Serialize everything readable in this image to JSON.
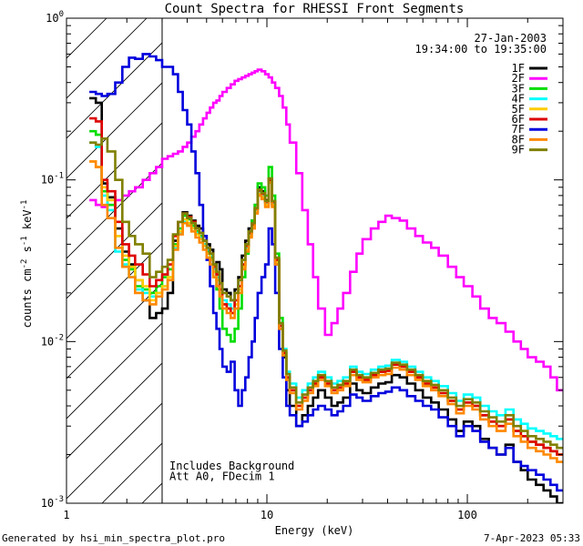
{
  "chart_data": {
    "type": "line",
    "title": "Count Spectra for RHESSI Front Segments",
    "xlabel": "Energy (keV)",
    "ylabel_parts": [
      "counts cm",
      "-2",
      " s",
      "-1",
      " keV",
      "-1"
    ],
    "xscale": "log",
    "yscale": "log",
    "xlim": [
      1,
      300
    ],
    "ylim": [
      0.001,
      1
    ],
    "x_ticks": [
      {
        "value": 1,
        "label": "1"
      },
      {
        "value": 10,
        "label": "10"
      },
      {
        "value": 100,
        "label": "100"
      }
    ],
    "y_ticks": [
      {
        "value": 0.001,
        "base": "10",
        "exp": "-3"
      },
      {
        "value": 0.01,
        "base": "10",
        "exp": "-2"
      },
      {
        "value": 0.1,
        "base": "10",
        "exp": "-1"
      },
      {
        "value": 1,
        "base": "10",
        "exp": "0"
      }
    ],
    "hatched_region_kev": [
      1,
      3
    ],
    "date": "27-Jan-2003",
    "time_range": "19:34:00 to 19:35:00",
    "annotations": [
      "Includes Background",
      "Att A0, FDecim 1"
    ],
    "footer_left": "Generated by hsi_min_spectra_plot.pro",
    "footer_right": "7-Apr-2023 05:33",
    "energy_edges_kev": [
      1.3,
      1.4,
      1.5,
      1.6,
      1.75,
      1.9,
      2.05,
      2.2,
      2.4,
      2.6,
      2.8,
      3.0,
      3.2,
      3.4,
      3.6,
      3.8,
      4.0,
      4.2,
      4.4,
      4.6,
      4.8,
      5.0,
      5.2,
      5.4,
      5.6,
      5.8,
      6.0,
      6.3,
      6.6,
      6.9,
      7.2,
      7.5,
      7.8,
      8.1,
      8.4,
      8.7,
      9.0,
      9.4,
      9.8,
      10.2,
      10.6,
      11.0,
      11.5,
      12.0,
      12.5,
      13.0,
      14.0,
      15.0,
      16.0,
      17.0,
      18.0,
      19.5,
      21.0,
      22.5,
      24.0,
      26.0,
      28.0,
      30.0,
      33.0,
      36.0,
      39.0,
      42.0,
      46.0,
      50.0,
      55.0,
      60.0,
      66.0,
      72.0,
      80.0,
      88.0,
      96.0,
      106.0,
      116.0,
      128.0,
      140.0,
      155.0,
      170.0,
      185.0,
      200.0,
      220.0,
      240.0,
      260.0,
      280.0,
      300.0
    ],
    "series": [
      {
        "name": "1F",
        "color": "#000000",
        "values": [
          0.32,
          0.3,
          0.095,
          0.078,
          0.05,
          0.036,
          0.03,
          0.024,
          0.018,
          0.014,
          0.015,
          0.016,
          0.02,
          0.042,
          0.055,
          0.063,
          0.06,
          0.056,
          0.052,
          0.05,
          0.045,
          0.04,
          0.037,
          0.03,
          0.031,
          0.028,
          0.021,
          0.02,
          0.018,
          0.021,
          0.025,
          0.034,
          0.042,
          0.05,
          0.056,
          0.07,
          0.09,
          0.085,
          0.075,
          0.1,
          0.07,
          0.03,
          0.012,
          0.008,
          0.005,
          0.004,
          0.003,
          0.0035,
          0.004,
          0.0045,
          0.005,
          0.0045,
          0.004,
          0.0042,
          0.0045,
          0.0055,
          0.005,
          0.0048,
          0.0052,
          0.0055,
          0.0056,
          0.0062,
          0.006,
          0.0055,
          0.005,
          0.0045,
          0.0042,
          0.0038,
          0.0033,
          0.0028,
          0.0032,
          0.003,
          0.0025,
          0.0022,
          0.002,
          0.0023,
          0.0018,
          0.0016,
          0.0014,
          0.0013,
          0.0012,
          0.0011,
          0.001
        ]
      },
      {
        "name": "2F",
        "color": "#ff00ff",
        "values": [
          0.075,
          0.07,
          0.068,
          0.07,
          0.075,
          0.08,
          0.085,
          0.09,
          0.1,
          0.11,
          0.12,
          0.135,
          0.14,
          0.145,
          0.15,
          0.16,
          0.17,
          0.185,
          0.2,
          0.22,
          0.24,
          0.26,
          0.28,
          0.3,
          0.31,
          0.33,
          0.35,
          0.37,
          0.39,
          0.41,
          0.42,
          0.43,
          0.44,
          0.45,
          0.46,
          0.47,
          0.48,
          0.47,
          0.45,
          0.43,
          0.4,
          0.37,
          0.33,
          0.28,
          0.22,
          0.17,
          0.11,
          0.065,
          0.04,
          0.025,
          0.016,
          0.011,
          0.013,
          0.016,
          0.02,
          0.027,
          0.035,
          0.043,
          0.05,
          0.055,
          0.06,
          0.058,
          0.056,
          0.05,
          0.045,
          0.041,
          0.038,
          0.034,
          0.029,
          0.025,
          0.022,
          0.019,
          0.016,
          0.014,
          0.013,
          0.0115,
          0.01,
          0.009,
          0.008,
          0.0075,
          0.007,
          0.006,
          0.005
        ]
      },
      {
        "name": "3F",
        "color": "#00dd00",
        "values": [
          0.2,
          0.19,
          0.085,
          0.07,
          0.045,
          0.032,
          0.028,
          0.022,
          0.021,
          0.02,
          0.022,
          0.025,
          0.028,
          0.04,
          0.05,
          0.06,
          0.057,
          0.052,
          0.048,
          0.045,
          0.04,
          0.036,
          0.033,
          0.025,
          0.021,
          0.016,
          0.012,
          0.011,
          0.01,
          0.012,
          0.016,
          0.025,
          0.035,
          0.048,
          0.056,
          0.07,
          0.095,
          0.09,
          0.08,
          0.12,
          0.08,
          0.035,
          0.014,
          0.009,
          0.0065,
          0.005,
          0.004,
          0.0045,
          0.005,
          0.0055,
          0.006,
          0.0055,
          0.005,
          0.0052,
          0.0055,
          0.0065,
          0.006,
          0.0058,
          0.0062,
          0.0065,
          0.0066,
          0.0072,
          0.007,
          0.0065,
          0.006,
          0.0055,
          0.0052,
          0.0048,
          0.0043,
          0.0038,
          0.0042,
          0.004,
          0.0035,
          0.0032,
          0.003,
          0.0033,
          0.0028,
          0.0026,
          0.0024,
          0.0023,
          0.0022,
          0.0021,
          0.002
        ]
      },
      {
        "name": "4F",
        "color": "#00ffff",
        "values": [
          0.17,
          0.16,
          0.08,
          0.065,
          0.036,
          0.03,
          0.025,
          0.021,
          0.02,
          0.019,
          0.02,
          0.022,
          0.025,
          0.038,
          0.047,
          0.055,
          0.053,
          0.05,
          0.047,
          0.044,
          0.04,
          0.037,
          0.034,
          0.028,
          0.025,
          0.021,
          0.018,
          0.017,
          0.016,
          0.018,
          0.022,
          0.03,
          0.038,
          0.046,
          0.052,
          0.065,
          0.085,
          0.08,
          0.072,
          0.1,
          0.072,
          0.032,
          0.013,
          0.009,
          0.0065,
          0.0055,
          0.0045,
          0.005,
          0.0055,
          0.006,
          0.0065,
          0.006,
          0.0055,
          0.0057,
          0.006,
          0.007,
          0.0065,
          0.0063,
          0.0067,
          0.007,
          0.0071,
          0.0077,
          0.0075,
          0.007,
          0.0065,
          0.006,
          0.0057,
          0.0053,
          0.0048,
          0.0043,
          0.0047,
          0.0045,
          0.004,
          0.0037,
          0.0035,
          0.0038,
          0.0033,
          0.0031,
          0.0029,
          0.0028,
          0.0027,
          0.0026,
          0.0025
        ]
      },
      {
        "name": "5F",
        "color": "#ffcc00",
        "values": [
          0.13,
          0.12,
          0.09,
          0.075,
          0.045,
          0.034,
          0.029,
          0.024,
          0.022,
          0.018,
          0.02,
          0.022,
          0.025,
          0.039,
          0.048,
          0.057,
          0.054,
          0.05,
          0.046,
          0.043,
          0.039,
          0.035,
          0.032,
          0.027,
          0.024,
          0.02,
          0.017,
          0.016,
          0.015,
          0.017,
          0.021,
          0.029,
          0.037,
          0.045,
          0.051,
          0.063,
          0.082,
          0.078,
          0.07,
          0.098,
          0.07,
          0.031,
          0.0125,
          0.0085,
          0.006,
          0.005,
          0.004,
          0.0045,
          0.005,
          0.0055,
          0.006,
          0.0055,
          0.005,
          0.0052,
          0.0055,
          0.0065,
          0.006,
          0.0058,
          0.0062,
          0.0065,
          0.0066,
          0.0072,
          0.007,
          0.0065,
          0.006,
          0.0055,
          0.0052,
          0.0048,
          0.0043,
          0.0038,
          0.0042,
          0.004,
          0.0035,
          0.0032,
          0.003,
          0.0033,
          0.0028,
          0.0026,
          0.0024,
          0.0023,
          0.0022,
          0.0021,
          0.002
        ]
      },
      {
        "name": "6F",
        "color": "#dd0000",
        "values": [
          0.24,
          0.23,
          0.1,
          0.085,
          0.055,
          0.04,
          0.034,
          0.03,
          0.026,
          0.022,
          0.024,
          0.026,
          0.03,
          0.045,
          0.055,
          0.062,
          0.059,
          0.055,
          0.05,
          0.047,
          0.042,
          0.038,
          0.035,
          0.029,
          0.026,
          0.021,
          0.017,
          0.016,
          0.015,
          0.018,
          0.022,
          0.03,
          0.039,
          0.047,
          0.053,
          0.066,
          0.086,
          0.082,
          0.073,
          0.1,
          0.073,
          0.032,
          0.0125,
          0.0085,
          0.006,
          0.005,
          0.004,
          0.0045,
          0.005,
          0.0055,
          0.006,
          0.0055,
          0.005,
          0.0052,
          0.0055,
          0.0065,
          0.006,
          0.0058,
          0.0062,
          0.0065,
          0.0066,
          0.0072,
          0.007,
          0.0065,
          0.006,
          0.0055,
          0.0052,
          0.0048,
          0.0043,
          0.0038,
          0.0042,
          0.004,
          0.0035,
          0.0032,
          0.003,
          0.0033,
          0.0028,
          0.0026,
          0.0024,
          0.0023,
          0.0022,
          0.0021,
          0.002
        ]
      },
      {
        "name": "7F",
        "color": "#0000dd",
        "values": [
          0.35,
          0.34,
          0.33,
          0.34,
          0.4,
          0.5,
          0.57,
          0.56,
          0.6,
          0.58,
          0.55,
          0.5,
          0.5,
          0.45,
          0.35,
          0.27,
          0.22,
          0.15,
          0.11,
          0.07,
          0.045,
          0.032,
          0.022,
          0.015,
          0.012,
          0.009,
          0.007,
          0.0065,
          0.0075,
          0.005,
          0.004,
          0.005,
          0.006,
          0.008,
          0.01,
          0.014,
          0.02,
          0.025,
          0.03,
          0.05,
          0.04,
          0.02,
          0.009,
          0.006,
          0.004,
          0.0035,
          0.003,
          0.0032,
          0.0035,
          0.0038,
          0.004,
          0.0038,
          0.0035,
          0.0037,
          0.004,
          0.0047,
          0.0045,
          0.0043,
          0.0046,
          0.0048,
          0.0049,
          0.0052,
          0.005,
          0.0046,
          0.0043,
          0.004,
          0.0038,
          0.0034,
          0.003,
          0.0026,
          0.003,
          0.0028,
          0.0024,
          0.0022,
          0.002,
          0.0022,
          0.0018,
          0.0017,
          0.0016,
          0.0015,
          0.0014,
          0.0013,
          0.0012
        ]
      },
      {
        "name": "8F",
        "color": "#ff8800",
        "values": [
          0.13,
          0.12,
          0.07,
          0.058,
          0.038,
          0.029,
          0.025,
          0.02,
          0.018,
          0.017,
          0.019,
          0.021,
          0.024,
          0.037,
          0.046,
          0.054,
          0.052,
          0.048,
          0.044,
          0.041,
          0.037,
          0.033,
          0.03,
          0.025,
          0.022,
          0.019,
          0.016,
          0.015,
          0.014,
          0.016,
          0.02,
          0.028,
          0.036,
          0.044,
          0.05,
          0.062,
          0.08,
          0.076,
          0.068,
          0.096,
          0.068,
          0.03,
          0.012,
          0.0082,
          0.0058,
          0.0048,
          0.0038,
          0.0043,
          0.0048,
          0.0053,
          0.0058,
          0.0053,
          0.0048,
          0.005,
          0.0053,
          0.0062,
          0.0058,
          0.0056,
          0.006,
          0.0062,
          0.0063,
          0.0069,
          0.0067,
          0.0062,
          0.0058,
          0.0053,
          0.005,
          0.0046,
          0.0041,
          0.0036,
          0.004,
          0.0038,
          0.0033,
          0.003,
          0.0028,
          0.0031,
          0.0026,
          0.0024,
          0.0022,
          0.0021,
          0.002,
          0.0019,
          0.0018
        ]
      },
      {
        "name": "9F",
        "color": "#808000",
        "values": [
          0.17,
          0.165,
          0.18,
          0.15,
          0.1,
          0.055,
          0.045,
          0.04,
          0.035,
          0.025,
          0.027,
          0.029,
          0.032,
          0.046,
          0.055,
          0.062,
          0.058,
          0.054,
          0.05,
          0.047,
          0.042,
          0.038,
          0.035,
          0.03,
          0.027,
          0.023,
          0.02,
          0.019,
          0.018,
          0.02,
          0.024,
          0.032,
          0.04,
          0.048,
          0.054,
          0.067,
          0.087,
          0.083,
          0.074,
          0.102,
          0.074,
          0.033,
          0.013,
          0.0088,
          0.0063,
          0.0052,
          0.0042,
          0.0047,
          0.0052,
          0.0057,
          0.0062,
          0.0057,
          0.0052,
          0.0054,
          0.0057,
          0.0067,
          0.0062,
          0.006,
          0.0064,
          0.0067,
          0.0068,
          0.0074,
          0.0072,
          0.0067,
          0.0062,
          0.0057,
          0.0054,
          0.005,
          0.0045,
          0.004,
          0.0044,
          0.0042,
          0.0037,
          0.0034,
          0.0032,
          0.0035,
          0.003,
          0.0028,
          0.0026,
          0.0025,
          0.0024,
          0.0023,
          0.0022
        ]
      }
    ]
  }
}
